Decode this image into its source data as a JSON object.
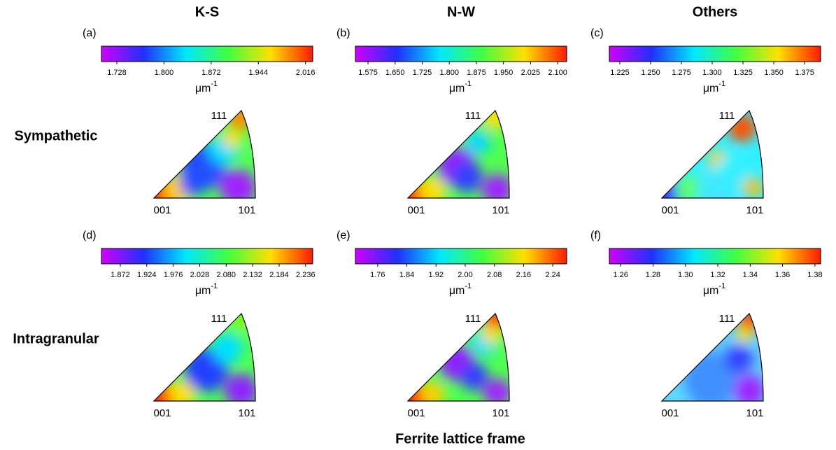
{
  "columns": [
    "K-S",
    "N-W",
    "Others"
  ],
  "rows": [
    "Sympathetic",
    "Intragranular"
  ],
  "unit": {
    "base": "μm",
    "sup": "-1"
  },
  "vertices": {
    "v001": "001",
    "v101": "101",
    "v111": "111"
  },
  "x_label": "Ferrite lattice frame",
  "panels": [
    {
      "label": "(a)",
      "range": [
        1.7045,
        2.027
      ],
      "ticks": [
        1.728,
        {
          "value": 1.8,
          "label": "1.800"
        },
        1.872,
        1.944,
        2.016
      ]
    },
    {
      "label": "(b)",
      "range": [
        1.54,
        2.125
      ],
      "ticks": [
        1.575,
        {
          "value": 1.65,
          "label": "1.650"
        },
        1.725,
        {
          "value": 1.8,
          "label": "1.800"
        },
        1.875,
        {
          "value": 1.95,
          "label": "1.950"
        },
        2.025,
        {
          "value": 2.1,
          "label": "2.100"
        }
      ]
    },
    {
      "label": "(c)",
      "range": [
        1.2165,
        1.388
      ],
      "ticks": [
        1.225,
        {
          "value": 1.25,
          "label": "1.250"
        },
        1.275,
        {
          "value": 1.3,
          "label": "1.300"
        },
        1.325,
        {
          "value": 1.35,
          "label": "1.350"
        },
        1.375
      ]
    },
    {
      "label": "(d)",
      "range": [
        1.835,
        2.25
      ],
      "ticks": [
        1.872,
        1.924,
        1.976,
        2.028,
        {
          "value": 2.08,
          "label": "2.080"
        },
        2.132,
        2.184,
        2.236
      ]
    },
    {
      "label": "(e)",
      "range": [
        1.699,
        2.278
      ],
      "ticks": [
        1.76,
        1.84,
        1.92,
        {
          "value": 2,
          "label": "2.00"
        },
        2.08,
        2.16,
        2.24
      ]
    },
    {
      "label": "(f)",
      "range": [
        1.253,
        1.3835
      ],
      "ticks": [
        1.26,
        1.28,
        {
          "value": 1.3,
          "label": "1.30"
        },
        1.32,
        1.34,
        1.36,
        1.38
      ]
    }
  ]
}
